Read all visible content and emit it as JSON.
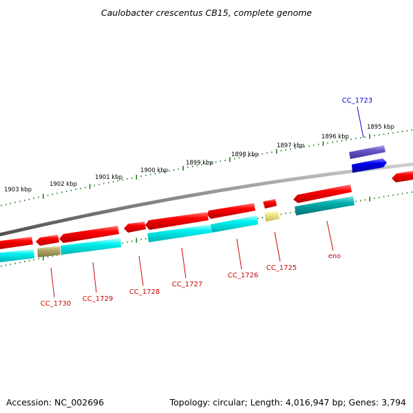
{
  "title": "Caulobacter crescentus CB15, complete genome",
  "accession": "Accession: NC_002696",
  "summary": "Topology: circular; Length: 4,016,947 bp; Genes: 3,794",
  "colors": {
    "backbone": "#8c8c8c",
    "tick": "#1f7a1f",
    "forward_cds": "#ff0000",
    "reverse_cds": "#00e5e5",
    "teal_cds": "#00a8a8",
    "olive_cds": "#b5ad6a",
    "pale_yellow_cds": "#f0e68c",
    "blue_cds": "#0000ee",
    "purple_cds": "#6a5acd",
    "label_red": "#cc0000",
    "label_blue": "#0000cc"
  },
  "scale_labels": [
    "1903 kbp",
    "1902 kbp",
    "1901 kbp",
    "1900 kbp",
    "1899 kbp",
    "1898 kbp",
    "1897 kbp",
    "1896 kbp",
    "1895 kbp"
  ],
  "gene_labels": [
    {
      "name": "CC_1730",
      "color": "label_red"
    },
    {
      "name": "CC_1729",
      "color": "label_red"
    },
    {
      "name": "CC_1728",
      "color": "label_red"
    },
    {
      "name": "CC_1727",
      "color": "label_red"
    },
    {
      "name": "CC_1726",
      "color": "label_red"
    },
    {
      "name": "CC_1725",
      "color": "label_red"
    },
    {
      "name": "eno",
      "color": "label_red"
    },
    {
      "name": "CC_1723",
      "color": "label_blue"
    }
  ]
}
